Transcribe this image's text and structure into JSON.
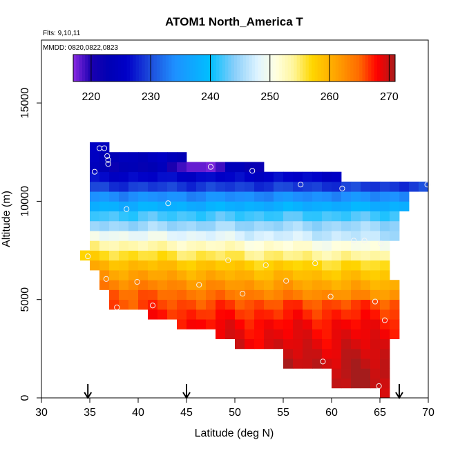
{
  "chart_data": {
    "type": "heatmap",
    "title": "ATOM1 North_America T",
    "subtitle_flights": "Flts: 9,10,11",
    "subtitle_dates": "MMDD: 0820,0822,0823",
    "xlabel": "Latitude (deg N)",
    "ylabel": "Altitude (m)",
    "xlim": [
      30,
      70
    ],
    "ylim": [
      0,
      18200
    ],
    "x_ticks": [
      "30",
      "35",
      "40",
      "45",
      "50",
      "55",
      "60",
      "65",
      "70"
    ],
    "y_ticks": [
      "0",
      "5000",
      "10000",
      "15000"
    ],
    "colorbar": {
      "range": [
        217,
        271
      ],
      "ticks": [
        "220",
        "230",
        "240",
        "250",
        "260",
        "270"
      ],
      "tick_values": [
        220,
        230,
        240,
        250,
        260,
        270
      ],
      "stops": [
        {
          "v": 217,
          "c": "#8a2be2"
        },
        {
          "v": 220,
          "c": "#1a00b0"
        },
        {
          "v": 223,
          "c": "#0000b4"
        },
        {
          "v": 226,
          "c": "#0000c8"
        },
        {
          "v": 230,
          "c": "#1e4ddc"
        },
        {
          "v": 234,
          "c": "#1e90ff"
        },
        {
          "v": 240,
          "c": "#00bfff"
        },
        {
          "v": 244,
          "c": "#87cefa"
        },
        {
          "v": 248,
          "c": "#e0f4ff"
        },
        {
          "v": 251,
          "c": "#ffffe0"
        },
        {
          "v": 254,
          "c": "#fff59a"
        },
        {
          "v": 257,
          "c": "#ffd700"
        },
        {
          "v": 261,
          "c": "#ffa500"
        },
        {
          "v": 265,
          "c": "#ff6a00"
        },
        {
          "v": 268,
          "c": "#ff0000"
        },
        {
          "v": 271,
          "c": "#a51c1c"
        }
      ]
    },
    "cell_size": {
      "lat": 1,
      "alt": 500
    },
    "rows": [
      {
        "alt": 250,
        "lat_start": 65,
        "lat_end": 66,
        "t_base": 270.5
      },
      {
        "alt": 750,
        "lat_start": 60,
        "lat_end": 66,
        "t_base": 270.5
      },
      {
        "alt": 1250,
        "lat_start": 60,
        "lat_end": 66,
        "t_base": 270.5
      },
      {
        "alt": 1750,
        "lat_start": 55,
        "lat_end": 66,
        "t_base": 270
      },
      {
        "alt": 2250,
        "lat_start": 55,
        "lat_end": 66,
        "t_base": 269.5
      },
      {
        "alt": 2750,
        "lat_start": 50,
        "lat_end": 66,
        "t_base": 269
      },
      {
        "alt": 3250,
        "lat_start": 48,
        "lat_end": 67,
        "t_base": 268.5
      },
      {
        "alt": 3750,
        "lat_start": 44,
        "lat_end": 67,
        "t_base": 268
      },
      {
        "alt": 4250,
        "lat_start": 41,
        "lat_end": 67,
        "t_base": 267
      },
      {
        "alt": 4750,
        "lat_start": 37,
        "lat_end": 67,
        "t_base": 266
      },
      {
        "alt": 5250,
        "lat_start": 37,
        "lat_end": 67,
        "t_base": 264
      },
      {
        "alt": 5750,
        "lat_start": 36,
        "lat_end": 67,
        "t_base": 262
      },
      {
        "alt": 6250,
        "lat_start": 36,
        "lat_end": 66,
        "t_base": 260
      },
      {
        "alt": 6750,
        "lat_start": 35,
        "lat_end": 66,
        "t_base": 258
      },
      {
        "alt": 7250,
        "lat_start": 34,
        "lat_end": 66,
        "t_base": 255
      },
      {
        "alt": 7750,
        "lat_start": 35,
        "lat_end": 66,
        "t_base": 252
      },
      {
        "alt": 8250,
        "lat_start": 35,
        "lat_end": 67,
        "t_base": 248
      },
      {
        "alt": 8750,
        "lat_start": 35,
        "lat_end": 67,
        "t_base": 245
      },
      {
        "alt": 9250,
        "lat_start": 35,
        "lat_end": 67,
        "t_base": 242
      },
      {
        "alt": 9750,
        "lat_start": 35,
        "lat_end": 68,
        "t_base": 238
      },
      {
        "alt": 10250,
        "lat_start": 35,
        "lat_end": 68,
        "t_base": 234
      },
      {
        "alt": 10750,
        "lat_start": 35,
        "lat_end": 70,
        "t_base": 229
      },
      {
        "alt": 11250,
        "lat_start": 35,
        "lat_end": 61,
        "t_base": 226
      },
      {
        "alt": 11750,
        "lat_start": 35,
        "lat_end": 53,
        "t_base": 223
      },
      {
        "alt": 12250,
        "lat_start": 35,
        "lat_end": 45,
        "t_base": 224
      },
      {
        "alt": 12750,
        "lat_start": 35,
        "lat_end": 37,
        "t_base": 225
      }
    ],
    "purple_cells": [
      {
        "lat": 44.5,
        "alt": 11750,
        "t": 219
      },
      {
        "lat": 45.5,
        "alt": 11750,
        "t": 218
      },
      {
        "lat": 46.5,
        "alt": 11750,
        "t": 218
      },
      {
        "lat": 47.5,
        "alt": 11750,
        "t": 217.5
      },
      {
        "lat": 48.5,
        "alt": 11750,
        "t": 219
      },
      {
        "lat": 43.5,
        "alt": 11750,
        "t": 220
      }
    ],
    "sample_points": [
      {
        "lat": 35.5,
        "alt": 11500
      },
      {
        "lat": 36.0,
        "alt": 12700
      },
      {
        "lat": 36.5,
        "alt": 12700
      },
      {
        "lat": 36.8,
        "alt": 12300
      },
      {
        "lat": 36.9,
        "alt": 12100
      },
      {
        "lat": 36.9,
        "alt": 11900
      },
      {
        "lat": 47.5,
        "alt": 11750
      },
      {
        "lat": 51.8,
        "alt": 11550
      },
      {
        "lat": 56.8,
        "alt": 10850
      },
      {
        "lat": 61.1,
        "alt": 10650
      },
      {
        "lat": 69.9,
        "alt": 10850
      },
      {
        "lat": 43.1,
        "alt": 9900
      },
      {
        "lat": 38.8,
        "alt": 9600
      },
      {
        "lat": 62.3,
        "alt": 8000
      },
      {
        "lat": 63.4,
        "alt": 8000
      },
      {
        "lat": 65.1,
        "alt": 7850
      },
      {
        "lat": 34.8,
        "alt": 7200
      },
      {
        "lat": 49.3,
        "alt": 7000
      },
      {
        "lat": 53.2,
        "alt": 6750
      },
      {
        "lat": 58.3,
        "alt": 6850
      },
      {
        "lat": 36.7,
        "alt": 6050
      },
      {
        "lat": 39.9,
        "alt": 5900
      },
      {
        "lat": 46.3,
        "alt": 5750
      },
      {
        "lat": 55.3,
        "alt": 5950
      },
      {
        "lat": 50.8,
        "alt": 5300
      },
      {
        "lat": 59.9,
        "alt": 5150
      },
      {
        "lat": 64.5,
        "alt": 4900
      },
      {
        "lat": 37.8,
        "alt": 4600
      },
      {
        "lat": 41.5,
        "alt": 4700
      },
      {
        "lat": 65.5,
        "alt": 3950
      },
      {
        "lat": 59.1,
        "alt": 1850
      },
      {
        "lat": 64.9,
        "alt": 600
      }
    ],
    "arrow_markers": [
      34.8,
      45.0,
      67.0
    ]
  }
}
